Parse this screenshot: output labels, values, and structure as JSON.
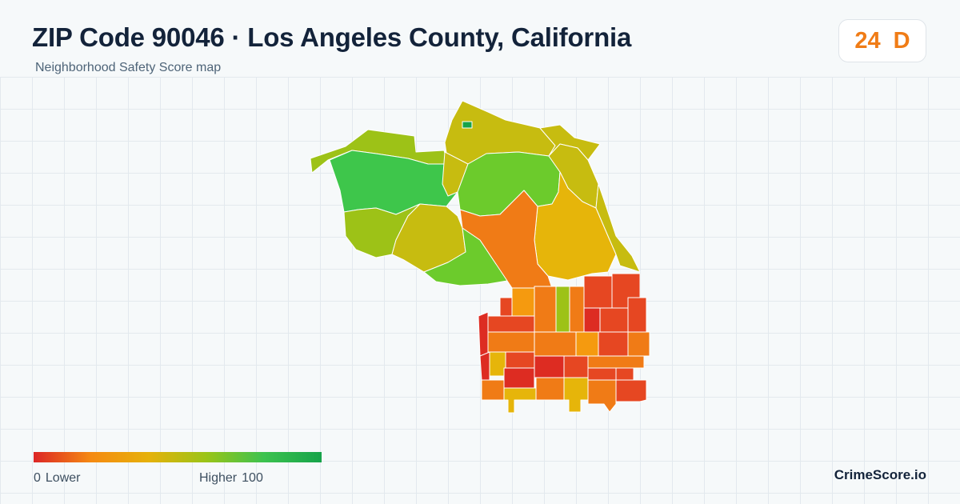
{
  "header": {
    "title": "ZIP Code 90046 · Los Angeles County, California",
    "subtitle": "Neighborhood Safety Score map"
  },
  "score_badge": {
    "score": "24",
    "grade": "D",
    "color": "#f07c16"
  },
  "legend": {
    "min_value": "0",
    "min_label": "Lower",
    "max_label": "Higher",
    "max_value": "100",
    "gradient": [
      "#dc2626",
      "#f58a12",
      "#e6b10a",
      "#9ac418",
      "#3cc24f",
      "#16a34a"
    ]
  },
  "brand": "CrimeScore.io",
  "map": {
    "palette": {
      "red": "#dd2c22",
      "red_orange": "#e64722",
      "orange": "#f07b16",
      "amber": "#f59a0f",
      "gold": "#e6b50a",
      "olive": "#c7bc10",
      "yellow_green": "#9dc217",
      "green": "#6ccb2c",
      "bright_green": "#3ec64b",
      "dark_green": "#16a34a"
    }
  }
}
